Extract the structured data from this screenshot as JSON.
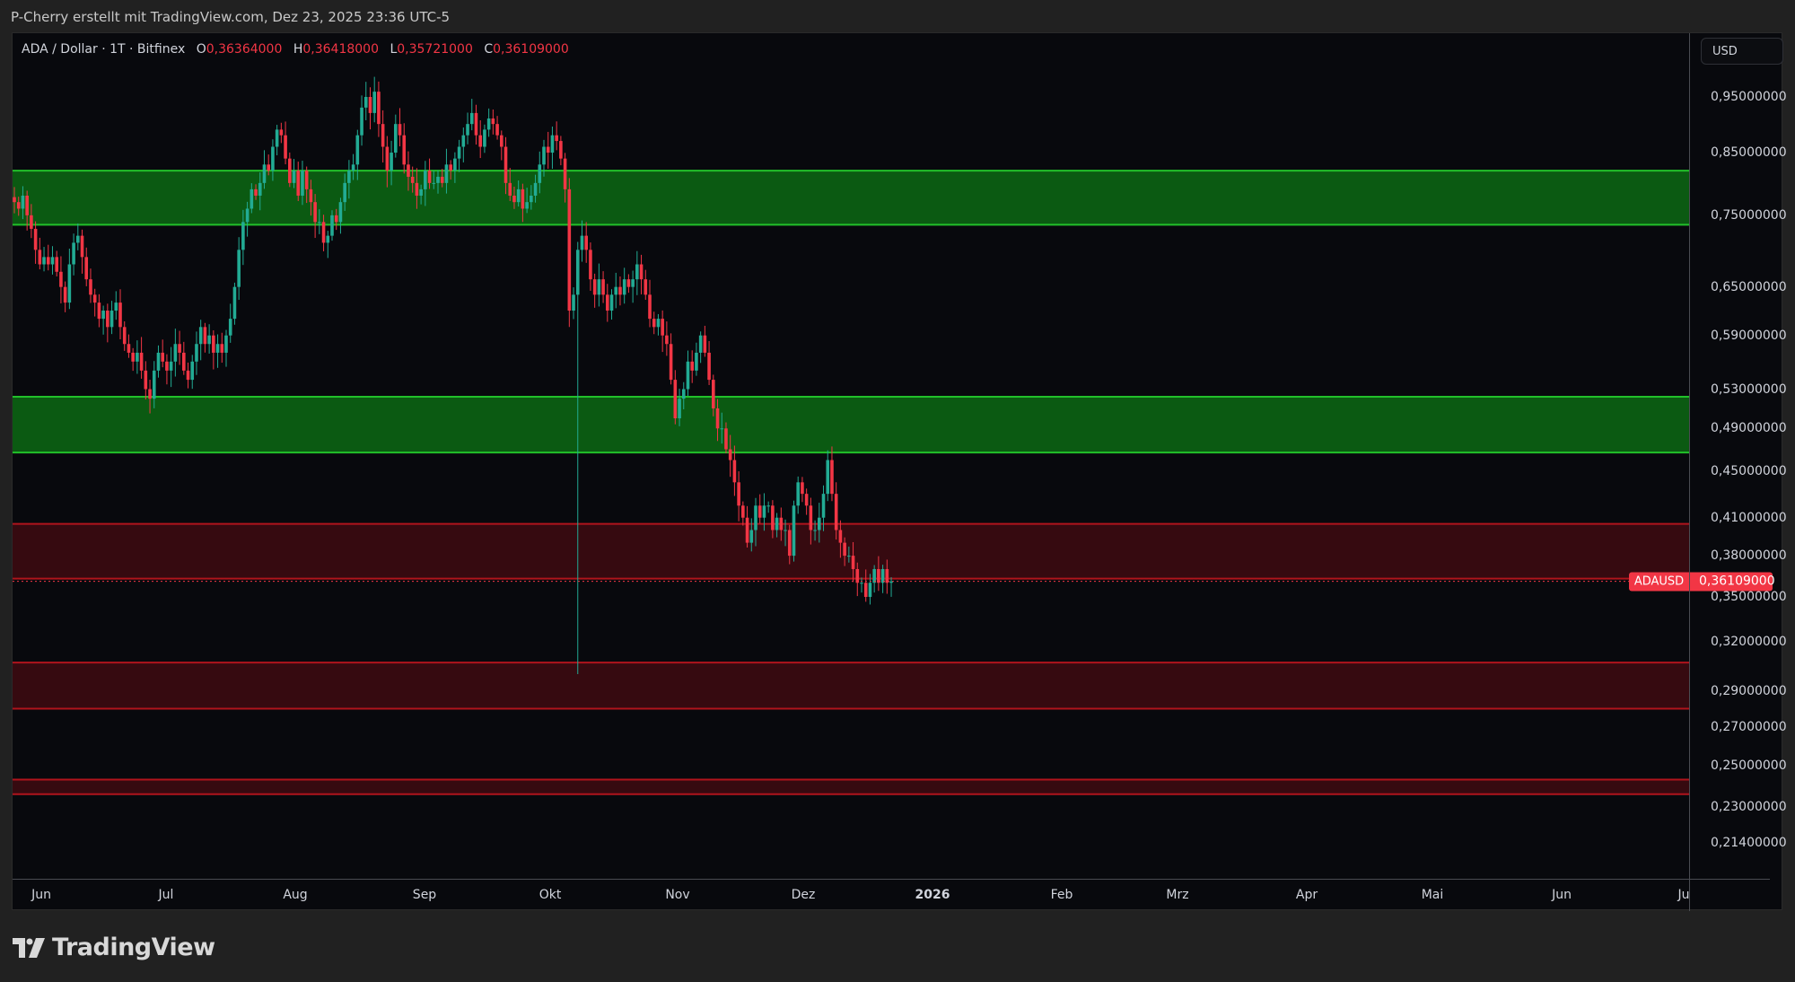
{
  "header": {
    "attribution": "P-Cherry erstellt mit TradingView.com, Dez 23, 2025 23:36 UTC-5"
  },
  "legend": {
    "symbol_line": "ADA / Dollar · 1T · Bitfinex",
    "open_key": "O",
    "open": "0,36364000",
    "high_key": "H",
    "high": "0,36418000",
    "low_key": "L",
    "low": "0,35721000",
    "close_key": "C",
    "close": "0,36109000"
  },
  "price_axis": {
    "currency_button": "USD",
    "ticks": [
      "0,95000000",
      "0,85000000",
      "0,75000000",
      "0,65000000",
      "0,59000000",
      "0,53000000",
      "0,49000000",
      "0,45000000",
      "0,41000000",
      "0,38000000",
      "0,35000000",
      "0,32000000",
      "0,29000000",
      "0,27000000",
      "0,25000000",
      "0,23000000",
      "0,21400000"
    ],
    "current_symbol_label": "ADAUSD",
    "current_price_label": "0,36109000"
  },
  "time_axis": {
    "labels": [
      "Jun",
      "Jul",
      "Aug",
      "Sep",
      "Okt",
      "Nov",
      "Dez",
      "2026",
      "Feb",
      "Mrz",
      "Apr",
      "Mai",
      "Jun",
      "Ju"
    ]
  },
  "footer": {
    "brand": "TradingView"
  },
  "colors": {
    "up": "#22ab94",
    "down": "#f23645",
    "support_fill": "#0b5a12",
    "support_line": "#22c02a",
    "resistance_fill": "#360a10",
    "resistance_line": "#b0141c",
    "background": "#08090d"
  },
  "chart_data": {
    "type": "candlestick",
    "title": "ADA / Dollar · 1T · Bitfinex",
    "xlabel": "",
    "ylabel": "USD",
    "scale": "log",
    "ylim": [
      0.205,
      1.02
    ],
    "current_price": 0.36109,
    "last_candle": {
      "open": 0.36364,
      "high": 0.36418,
      "low": 0.35721,
      "close": 0.36109
    },
    "zones": [
      {
        "type": "support",
        "color": "green",
        "from": 0.736,
        "to": 0.82
      },
      {
        "type": "support",
        "color": "green",
        "from": 0.467,
        "to": 0.522
      },
      {
        "type": "resistance",
        "color": "red",
        "from": 0.363,
        "to": 0.405
      },
      {
        "type": "resistance",
        "color": "red",
        "from": 0.28,
        "to": 0.307
      },
      {
        "type": "resistance",
        "color": "red",
        "from": 0.236,
        "to": 0.243
      }
    ],
    "x_start": "2025-05-25",
    "closes_approx": [
      0.77,
      0.76,
      0.78,
      0.75,
      0.73,
      0.7,
      0.68,
      0.69,
      0.68,
      0.69,
      0.67,
      0.65,
      0.63,
      0.68,
      0.71,
      0.72,
      0.69,
      0.66,
      0.64,
      0.63,
      0.61,
      0.62,
      0.6,
      0.62,
      0.63,
      0.6,
      0.58,
      0.57,
      0.56,
      0.57,
      0.55,
      0.53,
      0.52,
      0.55,
      0.57,
      0.56,
      0.55,
      0.56,
      0.58,
      0.57,
      0.55,
      0.54,
      0.56,
      0.58,
      0.6,
      0.58,
      0.59,
      0.57,
      0.58,
      0.57,
      0.59,
      0.61,
      0.65,
      0.7,
      0.74,
      0.76,
      0.79,
      0.78,
      0.8,
      0.83,
      0.82,
      0.86,
      0.89,
      0.88,
      0.84,
      0.8,
      0.82,
      0.78,
      0.82,
      0.79,
      0.77,
      0.74,
      0.74,
      0.71,
      0.72,
      0.75,
      0.74,
      0.77,
      0.8,
      0.82,
      0.83,
      0.88,
      0.93,
      0.95,
      0.92,
      0.96,
      0.9,
      0.86,
      0.82,
      0.85,
      0.9,
      0.88,
      0.83,
      0.81,
      0.8,
      0.78,
      0.79,
      0.82,
      0.8,
      0.8,
      0.81,
      0.8,
      0.83,
      0.82,
      0.84,
      0.86,
      0.88,
      0.9,
      0.92,
      0.88,
      0.86,
      0.89,
      0.91,
      0.9,
      0.88,
      0.86,
      0.8,
      0.78,
      0.77,
      0.79,
      0.76,
      0.77,
      0.78,
      0.8,
      0.83,
      0.86,
      0.85,
      0.88,
      0.87,
      0.84,
      0.79,
      0.62,
      0.64,
      0.7,
      0.72,
      0.7,
      0.66,
      0.64,
      0.66,
      0.64,
      0.62,
      0.64,
      0.65,
      0.64,
      0.66,
      0.65,
      0.66,
      0.68,
      0.66,
      0.64,
      0.61,
      0.6,
      0.61,
      0.59,
      0.58,
      0.54,
      0.5,
      0.52,
      0.53,
      0.56,
      0.55,
      0.57,
      0.59,
      0.57,
      0.54,
      0.51,
      0.49,
      0.49,
      0.47,
      0.46,
      0.44,
      0.42,
      0.41,
      0.39,
      0.4,
      0.42,
      0.41,
      0.42,
      0.42,
      0.4,
      0.41,
      0.4,
      0.4,
      0.38,
      0.42,
      0.44,
      0.43,
      0.42,
      0.4,
      0.4,
      0.41,
      0.43,
      0.46,
      0.43,
      0.4,
      0.39,
      0.38,
      0.38,
      0.37,
      0.36,
      0.36,
      0.35,
      0.36,
      0.37,
      0.36,
      0.37,
      0.36,
      0.361
    ]
  }
}
